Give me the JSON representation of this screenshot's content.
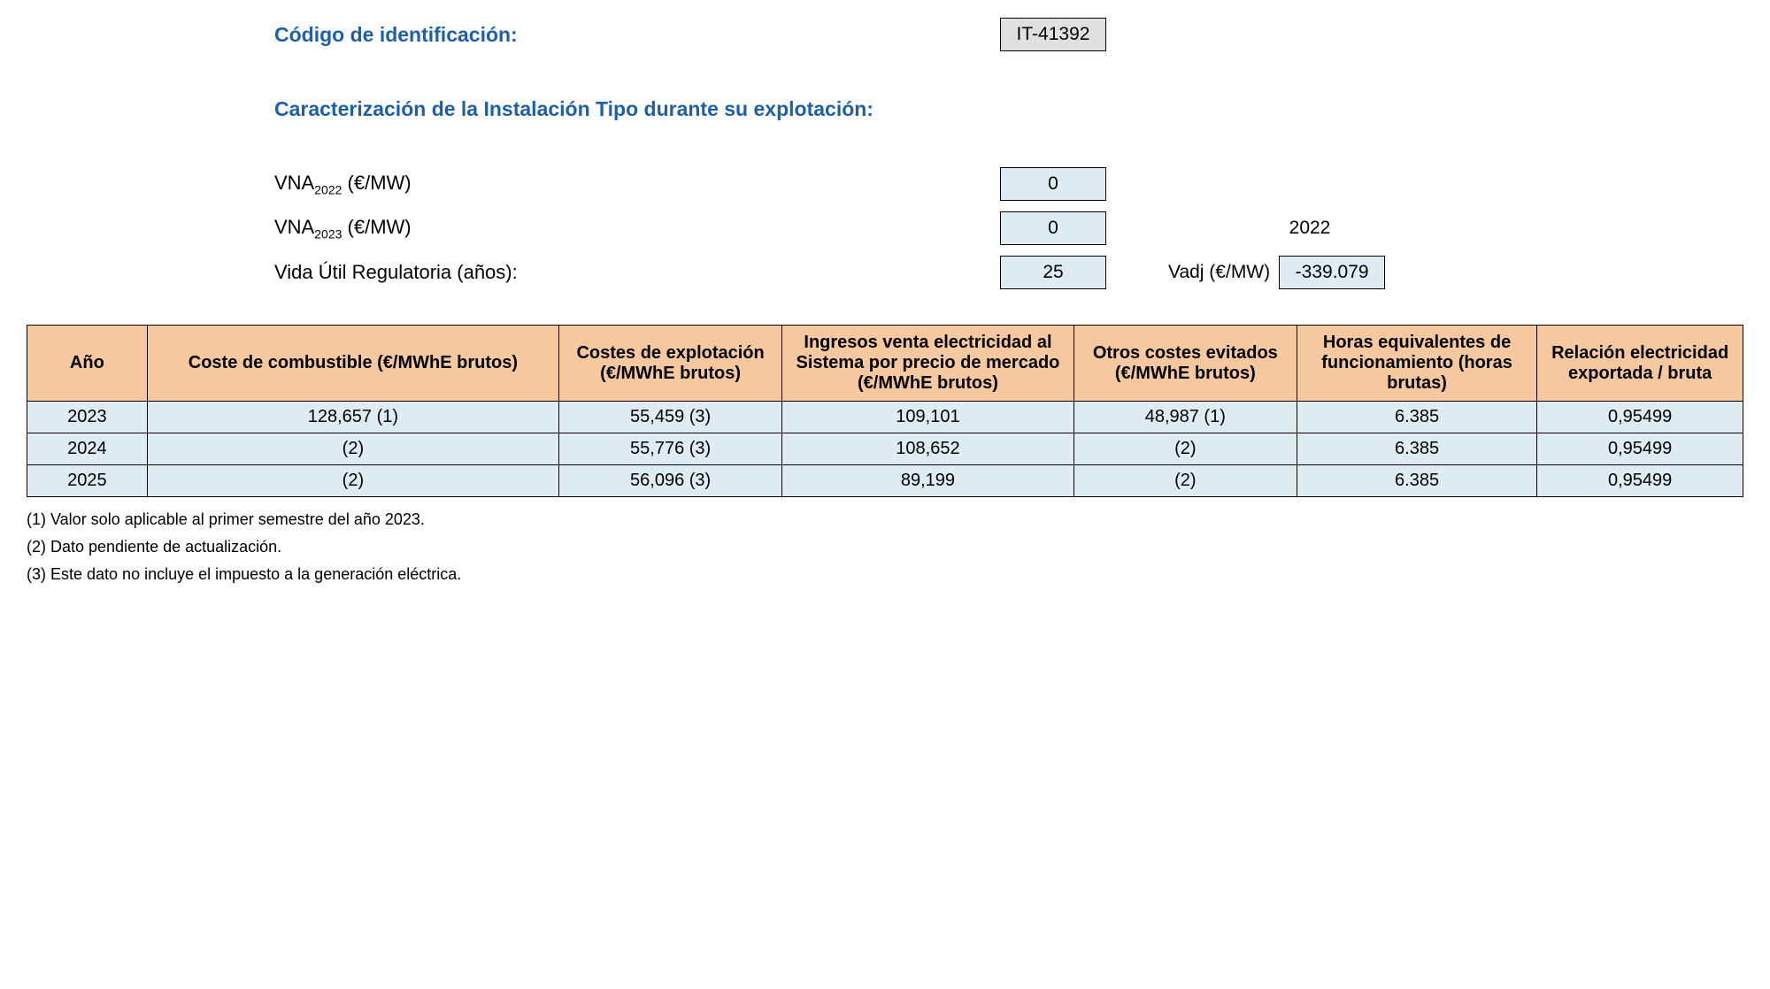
{
  "header": {
    "id_label": "Código de identificación:",
    "id_value": "IT-41392",
    "section_title": "Caracterización de la Instalación Tipo durante su explotación:",
    "vna2022_label_pre": "VNA",
    "vna2022_sub": "2022",
    "vna_unit": " (€/MW)",
    "vna2022_value": "0",
    "vna2023_label_pre": "VNA",
    "vna2023_sub": "2023",
    "vna2023_value": "0",
    "side_year": "2022",
    "vida_label": "Vida Útil Regulatoria (años):",
    "vida_value": "25",
    "vadj_label": "Vadj (€/MW)",
    "vadj_value": "-339.079"
  },
  "table": {
    "columns": [
      "Año",
      "Coste de combustible (€/MWhE brutos)",
      "Costes de explotación (€/MWhE brutos)",
      "Ingresos venta electricidad al Sistema por precio de mercado (€/MWhE brutos)",
      "Otros costes evitados (€/MWhE brutos)",
      "Horas equivalentes de funcionamiento (horas brutas)",
      "Relación electricidad exportada / bruta"
    ],
    "rows": [
      [
        "2023",
        "128,657 (1)",
        "55,459 (3)",
        "109,101",
        "48,987 (1)",
        "6.385",
        "0,95499"
      ],
      [
        "2024",
        "(2)",
        "55,776 (3)",
        "108,652",
        "(2)",
        "6.385",
        "0,95499"
      ],
      [
        "2025",
        "(2)",
        "56,096 (3)",
        "89,199",
        "(2)",
        "6.385",
        "0,95499"
      ]
    ],
    "colwidths": [
      "7%",
      "24%",
      "13%",
      "17%",
      "13%",
      "14%",
      "12%"
    ]
  },
  "footnotes": {
    "n1": "(1) Valor solo aplicable al primer semestre del año 2023.",
    "n2": "(2) Dato pendiente de actualización.",
    "n3": "(3) Este dato no incluye el impuesto a la generación eléctrica."
  },
  "style": {
    "heading_color": "#1f5fa8",
    "th_bg": "#f6c89f",
    "td_bg": "#deebf2",
    "box_gray": "#e0e0e0",
    "box_blue": "#deebf2"
  }
}
